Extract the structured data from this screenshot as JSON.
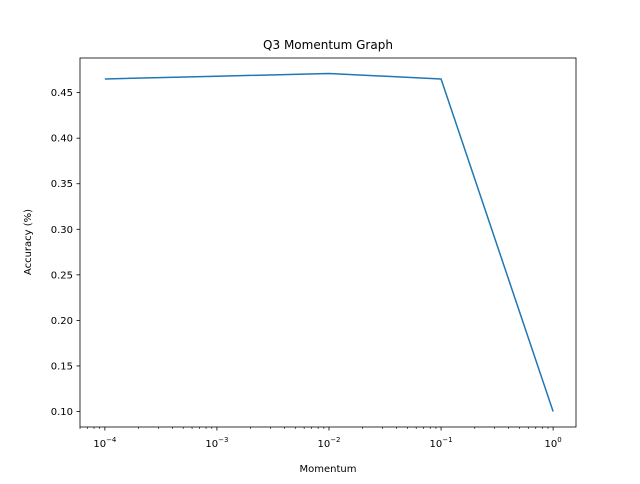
{
  "chart_data": {
    "type": "line",
    "title": "Q3 Momentum Graph",
    "xlabel": "Momentum",
    "ylabel": "Accuracy (%)",
    "x_scale": "log",
    "xlim": [
      6e-05,
      1.6
    ],
    "ylim": [
      0.083,
      0.488
    ],
    "grid": false,
    "x_ticks": [
      {
        "value": 0.0001,
        "base": "10",
        "exp": "−4"
      },
      {
        "value": 0.001,
        "base": "10",
        "exp": "−3"
      },
      {
        "value": 0.01,
        "base": "10",
        "exp": "−2"
      },
      {
        "value": 0.1,
        "base": "10",
        "exp": "−1"
      },
      {
        "value": 1,
        "base": "10",
        "exp": "0"
      }
    ],
    "y_ticks": [
      {
        "value": 0.1,
        "label": "0.10"
      },
      {
        "value": 0.15,
        "label": "0.15"
      },
      {
        "value": 0.2,
        "label": "0.20"
      },
      {
        "value": 0.25,
        "label": "0.25"
      },
      {
        "value": 0.3,
        "label": "0.30"
      },
      {
        "value": 0.35,
        "label": "0.35"
      },
      {
        "value": 0.4,
        "label": "0.40"
      },
      {
        "value": 0.45,
        "label": "0.45"
      }
    ],
    "series": [
      {
        "color": "#1f77b4",
        "x": [
          0.0001,
          0.001,
          0.01,
          0.1,
          1
        ],
        "y": [
          0.465,
          0.468,
          0.471,
          0.465,
          0.1
        ]
      }
    ]
  }
}
